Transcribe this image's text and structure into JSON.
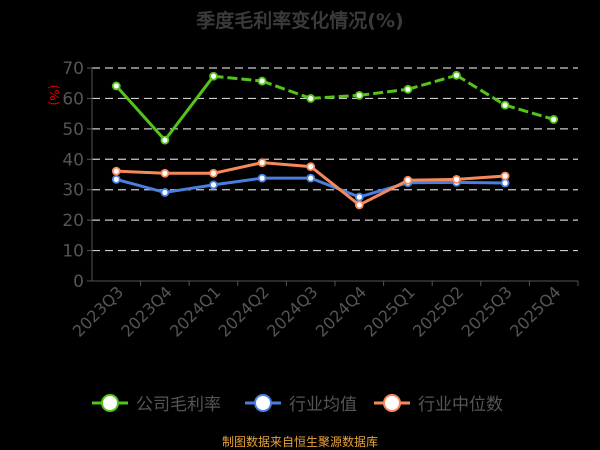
{
  "chart_data": {
    "type": "line",
    "title": "季度毛利率变化情况(%)",
    "ylabel": "(%)",
    "ylim": [
      0,
      70
    ],
    "yticks": [
      0,
      10,
      20,
      30,
      40,
      50,
      60,
      70
    ],
    "grid": true,
    "legend_position": "bottom",
    "categories": [
      "2023Q3",
      "2023Q4",
      "2024Q1",
      "2024Q2",
      "2024Q3",
      "2024Q4",
      "2025Q1",
      "2025Q2",
      "2025Q3",
      "2025Q4"
    ],
    "series": [
      {
        "name": "公司毛利率",
        "color": "#52c41a",
        "values": [
          64.1,
          46.3,
          67.3,
          65.7,
          60.0,
          61.0,
          63.0,
          67.6,
          57.8,
          53.1
        ]
      },
      {
        "name": "行业均值",
        "color": "#4a7fe0",
        "values": [
          33.4,
          29.1,
          31.6,
          33.8,
          33.8,
          27.6,
          32.3,
          32.4,
          32.2,
          null
        ]
      },
      {
        "name": "行业中位数",
        "color": "#f5895a",
        "values": [
          36.1,
          35.4,
          35.4,
          38.9,
          37.6,
          25.0,
          33.1,
          33.4,
          34.5,
          null
        ]
      }
    ]
  },
  "footer": "制图数据来自恒生聚源数据库",
  "colors": {
    "axis_text": "#555555",
    "ylabel": "#e00000",
    "grid": "#cccccc"
  }
}
